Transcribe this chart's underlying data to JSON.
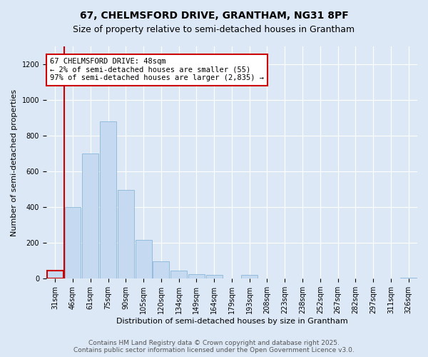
{
  "title_line1": "67, CHELMSFORD DRIVE, GRANTHAM, NG31 8PF",
  "title_line2": "Size of property relative to semi-detached houses in Grantham",
  "xlabel": "Distribution of semi-detached houses by size in Grantham",
  "ylabel": "Number of semi-detached properties",
  "categories": [
    "31sqm",
    "46sqm",
    "61sqm",
    "75sqm",
    "90sqm",
    "105sqm",
    "120sqm",
    "134sqm",
    "149sqm",
    "164sqm",
    "179sqm",
    "193sqm",
    "208sqm",
    "223sqm",
    "238sqm",
    "252sqm",
    "267sqm",
    "282sqm",
    "297sqm",
    "311sqm",
    "326sqm"
  ],
  "values": [
    45,
    400,
    700,
    880,
    495,
    215,
    95,
    45,
    25,
    20,
    0,
    20,
    0,
    0,
    0,
    0,
    0,
    0,
    0,
    0,
    5
  ],
  "bar_color": "#c5d9f1",
  "bar_edge_color": "#7bafd4",
  "highlight_bar_index": 0,
  "highlight_bar_edge_color": "#cc0000",
  "vline_color": "#cc0000",
  "vline_x_index": 1,
  "annotation_text": "67 CHELMSFORD DRIVE: 48sqm\n← 2% of semi-detached houses are smaller (55)\n97% of semi-detached houses are larger (2,835) →",
  "annotation_box_color": "white",
  "annotation_box_edge_color": "#cc0000",
  "ylim": [
    0,
    1300
  ],
  "yticks": [
    0,
    200,
    400,
    600,
    800,
    1000,
    1200
  ],
  "background_color": "#dce8f5",
  "plot_background_color": "#dce8f5",
  "footer_text": "Contains HM Land Registry data © Crown copyright and database right 2025.\nContains public sector information licensed under the Open Government Licence v3.0.",
  "title_fontsize": 10,
  "subtitle_fontsize": 9,
  "axis_label_fontsize": 8,
  "tick_fontsize": 7,
  "annotation_fontsize": 7.5,
  "footer_fontsize": 6.5
}
